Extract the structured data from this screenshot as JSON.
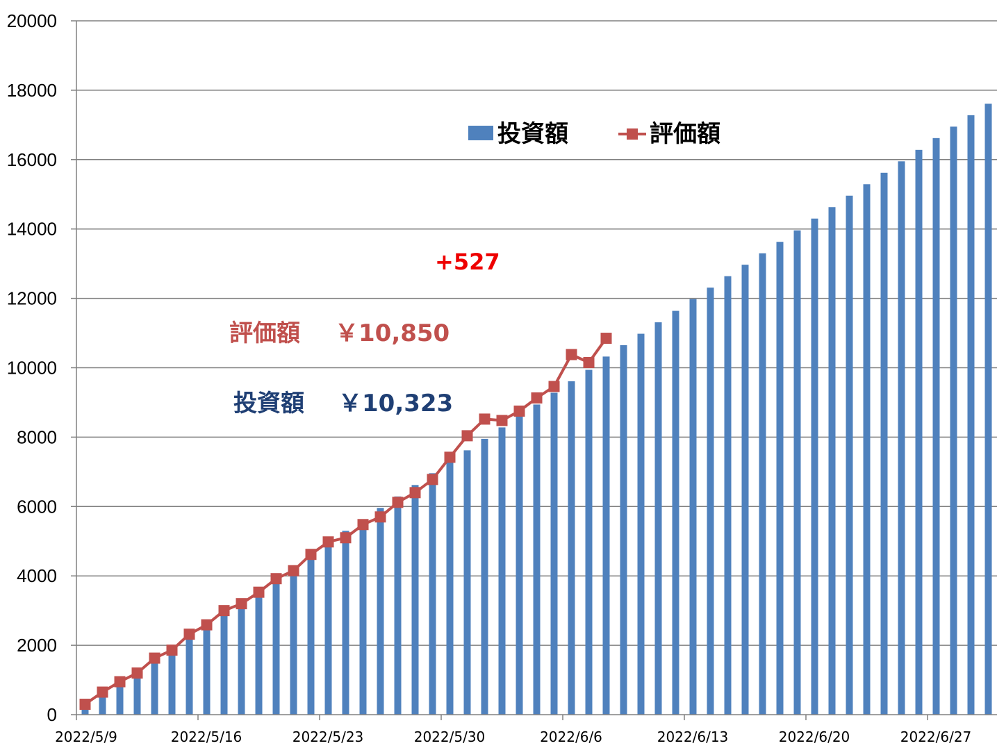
{
  "chart_data": {
    "type": "bar",
    "colors": {
      "invest": "#4f81bd",
      "eval": "#c0504d",
      "profit": "#ee0000",
      "invest_text": "#1f3f74",
      "grid": "#808080"
    },
    "ylim": [
      0,
      20000
    ],
    "yticks": [
      "0",
      "2000",
      "4000",
      "6000",
      "8000",
      "10000",
      "12000",
      "14000",
      "16000",
      "18000",
      "20000"
    ],
    "xtick_labels": [
      {
        "index": 0,
        "label": "2022/5/9"
      },
      {
        "index": 7,
        "label": "2022/5/16"
      },
      {
        "index": 14,
        "label": "2022/5/23"
      },
      {
        "index": 21,
        "label": "2022/5/30"
      },
      {
        "index": 28,
        "label": "2022/6/6"
      },
      {
        "index": 35,
        "label": "2022/6/13"
      },
      {
        "index": 42,
        "label": "2022/6/20"
      },
      {
        "index": 49,
        "label": "2022/6/27"
      }
    ],
    "series": [
      {
        "name": "投資額",
        "type": "bar",
        "values": [
          330,
          660,
          990,
          1320,
          1650,
          1980,
          2320,
          2650,
          2980,
          3310,
          3640,
          3970,
          4300,
          4640,
          4970,
          5300,
          5630,
          5960,
          6290,
          6620,
          6960,
          7290,
          7620,
          7950,
          8280,
          8610,
          8940,
          9280,
          9610,
          9940,
          10323,
          10650,
          10980,
          11310,
          11640,
          11980,
          12310,
          12640,
          12970,
          13300,
          13630,
          13960,
          14300,
          14630,
          14960,
          15290,
          15620,
          15950,
          16280,
          16620,
          16950,
          17280,
          17610
        ]
      },
      {
        "name": "評価額",
        "type": "line",
        "values": [
          300,
          650,
          950,
          1200,
          1630,
          1860,
          2320,
          2590,
          3000,
          3200,
          3530,
          3920,
          4150,
          4620,
          4980,
          5100,
          5480,
          5700,
          6120,
          6400,
          6780,
          7420,
          8040,
          8520,
          8480,
          8750,
          9130,
          9460,
          10380,
          10150,
          10850
        ]
      }
    ],
    "annotations": {
      "profit": "+527",
      "eval_label": "評価額",
      "eval_value": "￥10,850",
      "invest_label": "投資額",
      "invest_value": "￥10,323"
    },
    "legend": {
      "position": "top-center",
      "items": [
        "投資額",
        "評価額"
      ]
    }
  }
}
